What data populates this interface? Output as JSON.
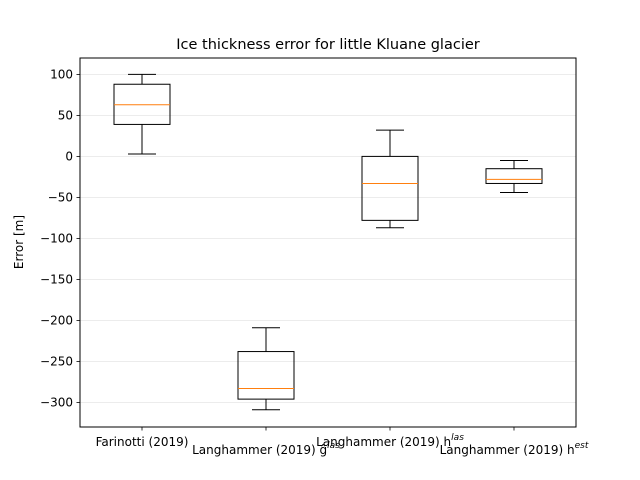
{
  "chart_data": {
    "type": "box",
    "title": "Ice thickness error for little Kluane glacier",
    "xlabel": "",
    "ylabel": "Error [m]",
    "ylim": [
      -330,
      120
    ],
    "yticks": [
      100,
      50,
      0,
      -50,
      -100,
      -150,
      -200,
      -250,
      -300
    ],
    "grid": "horizontal",
    "categories": [
      {
        "base": "Farinotti (2019)",
        "sup": ""
      },
      {
        "base": "Langhammer (2019) ĝ",
        "sup": "las"
      },
      {
        "base": "Langhammer (2019) h",
        "sup": "las"
      },
      {
        "base": "Langhammer (2019) h",
        "sup": "est"
      }
    ],
    "boxes": [
      {
        "whislo": 3,
        "q1": 39,
        "med": 63,
        "q3": 88,
        "whishi": 100
      },
      {
        "whislo": -309,
        "q1": -296,
        "med": -283,
        "q3": -238,
        "whishi": -209
      },
      {
        "whislo": -87,
        "q1": -78,
        "med": -33,
        "q3": 0,
        "whishi": 32
      },
      {
        "whislo": -44,
        "q1": -33,
        "med": -28,
        "q3": -15,
        "whishi": -5
      }
    ],
    "colors": {
      "box": "#000000",
      "median": "#ff7f0e",
      "grid": "#e6e6e6"
    }
  }
}
